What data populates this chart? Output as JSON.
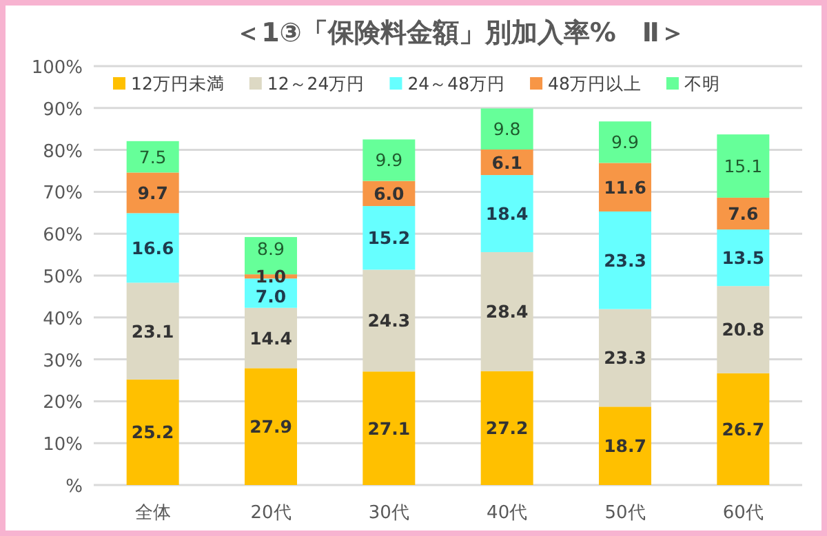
{
  "chart_data": {
    "type": "bar",
    "title": "＜1③「保険料金額」別加入率%　Ⅱ＞",
    "stacked": true,
    "grid": "y",
    "legend": "top",
    "categories": [
      "全体",
      "20代",
      "30代",
      "40代",
      "50代",
      "60代"
    ],
    "ylim": [
      0,
      100
    ],
    "yticks": [
      {
        "value": 0,
        "label": "%"
      },
      {
        "value": 10,
        "label": "10%"
      },
      {
        "value": 20,
        "label": "20%"
      },
      {
        "value": 30,
        "label": "30%"
      },
      {
        "value": 40,
        "label": "40%"
      },
      {
        "value": 50,
        "label": "50%"
      },
      {
        "value": 60,
        "label": "60%"
      },
      {
        "value": 70,
        "label": "70%"
      },
      {
        "value": 80,
        "label": "80%"
      },
      {
        "value": 90,
        "label": "90%"
      },
      {
        "value": 100,
        "label": "100%"
      }
    ],
    "series": [
      {
        "name": "12万円未満",
        "color": "#ffc000",
        "values": [
          25.2,
          27.9,
          27.1,
          27.2,
          18.7,
          26.7
        ],
        "value_labels": [
          "25.2",
          "27.9",
          "27.1",
          "27.2",
          "18.7",
          "26.7"
        ]
      },
      {
        "name": "12～24万円",
        "color": "#ddd9c4",
        "values": [
          23.1,
          14.4,
          24.3,
          28.4,
          23.3,
          20.8
        ],
        "value_labels": [
          "23.1",
          "14.4",
          "24.3",
          "28.4",
          "23.3",
          "20.8"
        ]
      },
      {
        "name": "24～48万円",
        "color": "#66ffff",
        "values": [
          16.6,
          7.0,
          15.2,
          18.4,
          23.3,
          13.5
        ],
        "value_labels": [
          "16.6",
          "7.0",
          "15.2",
          "18.4",
          "23.3",
          "13.5"
        ]
      },
      {
        "name": "48万円以上",
        "color": "#f79646",
        "values": [
          9.7,
          1.0,
          6.0,
          6.1,
          11.6,
          7.6
        ],
        "value_labels": [
          "9.7",
          "1.0",
          "6.0",
          "6.1",
          "11.6",
          "7.6"
        ]
      },
      {
        "name": "不明",
        "color": "#66ff99",
        "values": [
          7.5,
          8.9,
          9.9,
          9.8,
          9.9,
          15.1
        ],
        "value_labels": [
          "7.5",
          "8.9",
          "9.9",
          "9.8",
          "9.9",
          "15.1"
        ]
      }
    ]
  }
}
